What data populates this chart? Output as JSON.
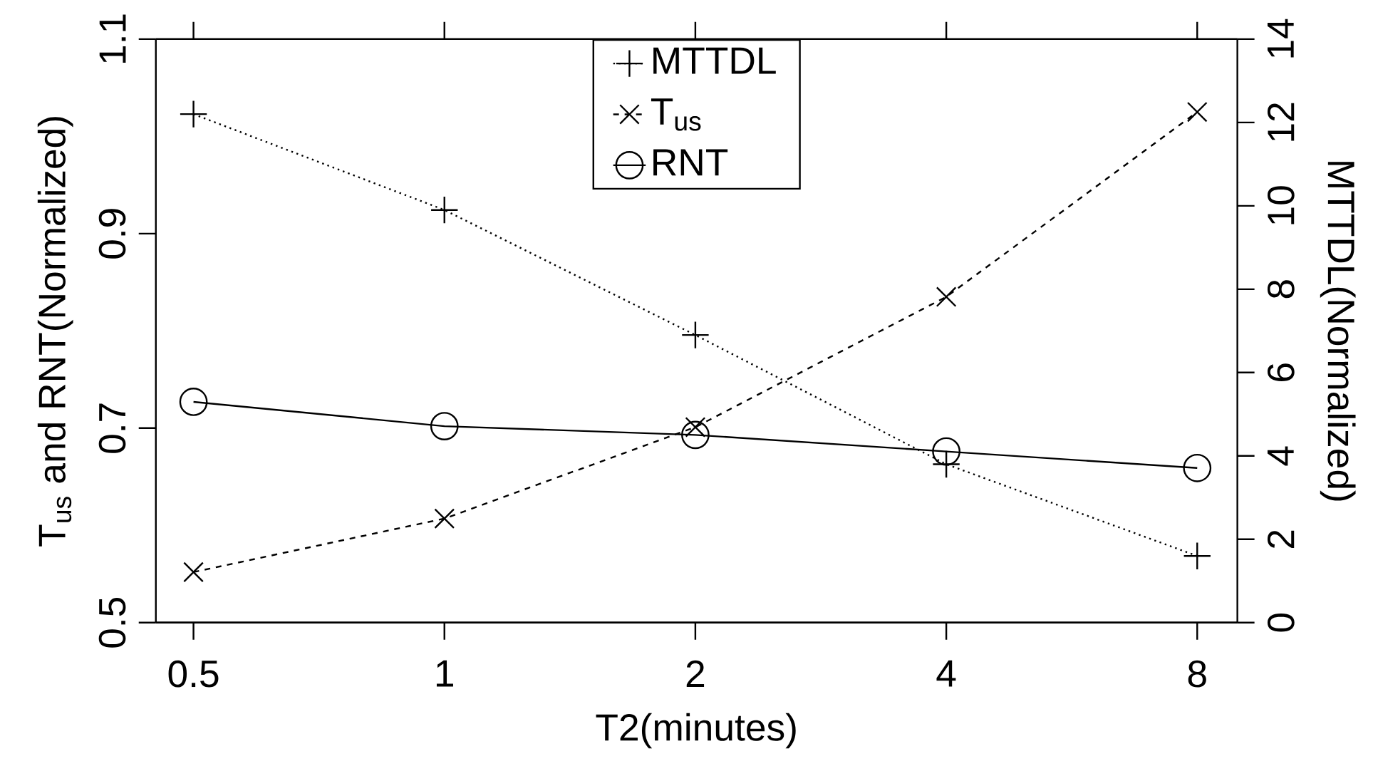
{
  "chart_data": {
    "type": "line",
    "xlabel": "T2(minutes)",
    "ylabel": "T$_{us}$ and RNT(Normalized)",
    "y2label": "MTTDL(Normalized)",
    "categories": [
      "0.5",
      "1",
      "2",
      "4",
      "8"
    ],
    "ylim": [
      0.5,
      1.1
    ],
    "yticks": [
      0.5,
      0.7,
      0.9,
      1.1
    ],
    "y2lim": [
      0,
      14
    ],
    "y2ticks": [
      0,
      2,
      4,
      6,
      8,
      10,
      12,
      14
    ],
    "legend": "top",
    "series": [
      {
        "name": "MTTDL",
        "color": "#000000",
        "axis": "y2",
        "marker": "cross",
        "line_style": "dotted",
        "values": [
          12.2,
          9.9,
          6.9,
          3.8,
          1.6
        ]
      },
      {
        "name": "T$_{us}$",
        "color": "#000000",
        "marker": "x",
        "line_style": "dashed",
        "values": [
          0.552,
          0.607,
          0.701,
          0.835,
          1.025
        ]
      },
      {
        "name": "RNT",
        "color": "#000000",
        "marker": "circle",
        "line_style": "solid",
        "values": [
          0.727,
          0.702,
          0.693,
          0.676,
          0.659
        ]
      }
    ]
  }
}
